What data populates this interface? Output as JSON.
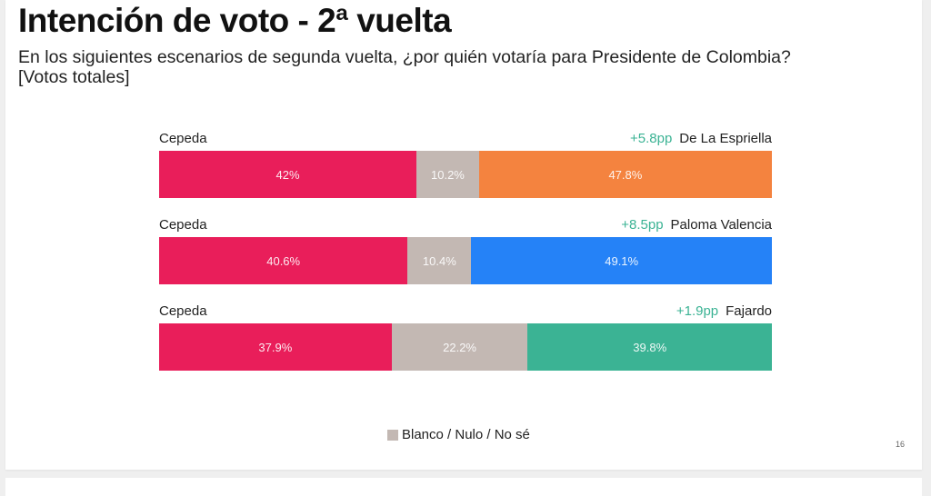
{
  "slide": {
    "title": "Intención de voto - 2ª vuelta",
    "subtitle": "En los siguientes escenarios de segunda vuelta, ¿por quién votaría para Presidente de Colombia?",
    "subtitle_note": "[Votos totales]",
    "page_number": "16"
  },
  "legend": {
    "items": [
      {
        "label": "Blanco / Nulo / No sé",
        "color": "#c3b8b3"
      }
    ]
  },
  "chart_data": {
    "type": "bar",
    "orientation": "horizontal",
    "stacked": true,
    "title": "Intención de voto - 2ª vuelta",
    "subtitle": "En los siguientes escenarios de segunda vuelta, ¿por quién votaría para Presidente de Colombia? [Votos totales]",
    "unit": "%",
    "legend_position": "bottom",
    "grid": false,
    "rows": [
      {
        "left_candidate": "Cepeda",
        "right_candidate": "De La Espriella",
        "difference": "+5.8pp",
        "segments": [
          {
            "name": "Cepeda",
            "value": 42,
            "label": "42%",
            "color": "#e91e5a"
          },
          {
            "name": "Blanco / Nulo / No sé",
            "value": 10.2,
            "label": "10.2%",
            "color": "#c3b8b3"
          },
          {
            "name": "De La Espriella",
            "value": 47.8,
            "label": "47.8%",
            "color": "#f4833f"
          }
        ]
      },
      {
        "left_candidate": "Cepeda",
        "right_candidate": "Paloma Valencia",
        "difference": "+8.5pp",
        "segments": [
          {
            "name": "Cepeda",
            "value": 40.6,
            "label": "40.6%",
            "color": "#e91e5a"
          },
          {
            "name": "Blanco / Nulo / No sé",
            "value": 10.4,
            "label": "10.4%",
            "color": "#c3b8b3"
          },
          {
            "name": "Paloma Valencia",
            "value": 49.1,
            "label": "49.1%",
            "color": "#2582f7"
          }
        ]
      },
      {
        "left_candidate": "Cepeda",
        "right_candidate": "Fajardo",
        "difference": "+1.9pp",
        "segments": [
          {
            "name": "Cepeda",
            "value": 37.9,
            "label": "37.9%",
            "color": "#e91e5a"
          },
          {
            "name": "Blanco / Nulo / No sé",
            "value": 22.2,
            "label": "22.2%",
            "color": "#c3b8b3"
          },
          {
            "name": "Fajardo",
            "value": 39.8,
            "label": "39.8%",
            "color": "#3bb394"
          }
        ]
      }
    ]
  }
}
